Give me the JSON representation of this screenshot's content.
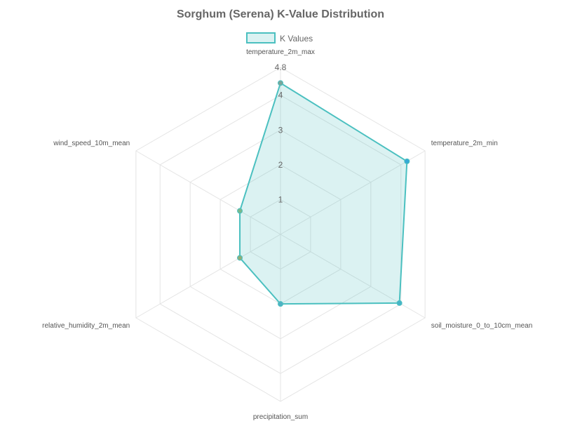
{
  "chart_data": {
    "type": "radar",
    "title": "Sorghum (Serena) K-Value Distribution",
    "axes": [
      "temperature_2m_max",
      "temperature_2m_min",
      "soil_moisture_0_to_10cm_mean",
      "precipitation_sum",
      "relative_humidity_2m_mean",
      "wind_speed_10m_mean"
    ],
    "series": [
      {
        "name": "K Values",
        "values": [
          4.35,
          4.2,
          3.95,
          2.0,
          1.35,
          1.35
        ]
      }
    ],
    "tick_labels": [
      "1",
      "2",
      "3",
      "4",
      "4.8"
    ],
    "tick_values": [
      1,
      2,
      3,
      4,
      4.8
    ],
    "r_range": [
      0,
      4.8
    ],
    "legend_position": "top",
    "colors": {
      "line": "#4bc0c0",
      "fill": "rgba(75,192,192,0.2)",
      "point_colors": [
        "#7aa59a",
        "#36a9d6",
        "#46b4c8",
        "#4fb2c4",
        "#8fae7a",
        "#7ab88c"
      ],
      "grid": "#e4e4e4"
    }
  }
}
